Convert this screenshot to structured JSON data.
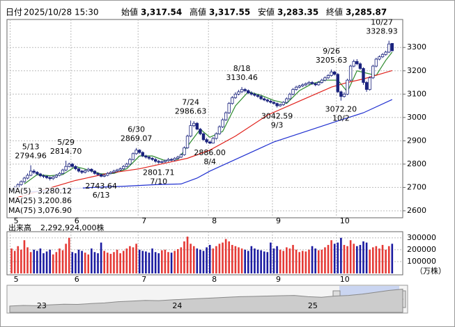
{
  "chart_data": {
    "type": "candlestick",
    "header": {
      "date_label": "日付",
      "date": "2025/10/28 15:30",
      "items": [
        {
          "label": "始値",
          "value": "3,317.54",
          "color": "#000000"
        },
        {
          "label": "高値",
          "value": "3,317.55",
          "color": "#e0201a"
        },
        {
          "label": "安値",
          "value": "3,283.35",
          "color": "#1e8a1e"
        },
        {
          "label": "終値",
          "value": "3,285.87",
          "color": "#000000"
        }
      ]
    },
    "xlim": [
      -1,
      121
    ],
    "xticks": [
      {
        "value": 0,
        "label": "5"
      },
      {
        "value": 19,
        "label": "6"
      },
      {
        "value": 40,
        "label": "7"
      },
      {
        "value": 62,
        "label": "8"
      },
      {
        "value": 82,
        "label": "9"
      },
      {
        "value": 102,
        "label": "10"
      }
    ],
    "ylim": [
      2570,
      3420
    ],
    "yticks": [
      2600,
      2700,
      2800,
      2900,
      3000,
      3100,
      3200,
      3300
    ],
    "grid": true,
    "up_color": "#ffffff",
    "down_color": "#1a237e",
    "open": [
      2685,
      2690,
      2700,
      2712,
      2725,
      2740,
      2752,
      2770,
      2765,
      2758,
      2750,
      2748,
      2742,
      2738,
      2745,
      2752,
      2760,
      2775,
      2790,
      2800,
      2790,
      2780,
      2770,
      2765,
      2772,
      2778,
      2770,
      2760,
      2755,
      2748,
      2752,
      2760,
      2765,
      2770,
      2775,
      2780,
      2790,
      2800,
      2820,
      2845,
      2860,
      2850,
      2835,
      2830,
      2825,
      2820,
      2812,
      2808,
      2810,
      2815,
      2820,
      2818,
      2825,
      2830,
      2840,
      2870,
      2920,
      2965,
      2975,
      2950,
      2930,
      2905,
      2895,
      2890,
      2910,
      2930,
      2960,
      2990,
      3020,
      3060,
      3085,
      3100,
      3110,
      3120,
      3115,
      3105,
      3100,
      3095,
      3090,
      3080,
      3075,
      3070,
      3065,
      3060,
      3050,
      3055,
      3065,
      3080,
      3100,
      3120,
      3130,
      3135,
      3140,
      3145,
      3150,
      3145,
      3140,
      3150,
      3160,
      3170,
      3180,
      3195,
      3185,
      3110,
      3090,
      3100,
      3160,
      3220,
      3240,
      3230,
      3210,
      3150,
      3120,
      3170,
      3220,
      3250,
      3260,
      3270,
      3280,
      3317.54
    ],
    "high": [
      2698,
      2706,
      2718,
      2730,
      2746,
      2760,
      2794.96,
      2778,
      2770,
      2762,
      2756,
      2752,
      2748,
      2750,
      2758,
      2766,
      2780,
      2814.7,
      2806,
      2805,
      2795,
      2784,
      2775,
      2778,
      2784,
      2782,
      2774,
      2765,
      2760,
      2758,
      2766,
      2770,
      2776,
      2780,
      2786,
      2796,
      2806,
      2826,
      2850,
      2869.07,
      2864,
      2855,
      2840,
      2836,
      2830,
      2826,
      2818,
      2816,
      2820,
      2826,
      2826,
      2830,
      2836,
      2846,
      2876,
      2926,
      2986.63,
      2984,
      2980,
      2955,
      2935,
      2912,
      2900,
      2916,
      2936,
      2966,
      2996,
      3026,
      3066,
      3092,
      3108,
      3118,
      3130.46,
      3126,
      3120,
      3112,
      3106,
      3100,
      3096,
      3086,
      3080,
      3076,
      3070,
      3064,
      3060,
      3070,
      3086,
      3106,
      3126,
      3136,
      3140,
      3146,
      3150,
      3156,
      3156,
      3150,
      3156,
      3166,
      3176,
      3186,
      3205.63,
      3200,
      3190,
      3115,
      3108,
      3166,
      3226,
      3248,
      3250,
      3236,
      3215,
      3156,
      3176,
      3226,
      3256,
      3266,
      3276,
      3286,
      3328.93,
      3317.55
    ],
    "low": [
      2680,
      2686,
      2696,
      2708,
      2720,
      2735,
      2748,
      2758,
      2752,
      2744,
      2740,
      2736,
      2730,
      2732,
      2740,
      2748,
      2756,
      2770,
      2786,
      2784,
      2774,
      2764,
      2758,
      2760,
      2766,
      2764,
      2755,
      2750,
      2743.64,
      2744,
      2748,
      2756,
      2760,
      2766,
      2770,
      2776,
      2786,
      2796,
      2816,
      2840,
      2844,
      2830,
      2824,
      2818,
      2814,
      2806,
      2801.71,
      2803,
      2805,
      2810,
      2812,
      2812,
      2820,
      2826,
      2836,
      2866,
      2915,
      2958,
      2945,
      2924,
      2900,
      2888,
      2886.0,
      2888,
      2905,
      2926,
      2955,
      2985,
      3015,
      3055,
      3080,
      3095,
      3105,
      3108,
      3100,
      3094,
      3090,
      3084,
      3075,
      3070,
      3064,
      3060,
      3055,
      3042.59,
      3046,
      3050,
      3060,
      3076,
      3095,
      3115,
      3125,
      3130,
      3134,
      3140,
      3140,
      3134,
      3136,
      3145,
      3155,
      3165,
      3175,
      3180,
      3105,
      3072.2,
      3085,
      3096,
      3155,
      3215,
      3224,
      3204,
      3140,
      3110,
      3115,
      3165,
      3215,
      3245,
      3255,
      3265,
      3276,
      3283.35
    ],
    "close": [
      2690,
      2700,
      2712,
      2725,
      2740,
      2752,
      2770,
      2765,
      2758,
      2750,
      2748,
      2742,
      2738,
      2745,
      2752,
      2760,
      2775,
      2790,
      2800,
      2790,
      2780,
      2770,
      2765,
      2772,
      2778,
      2770,
      2760,
      2755,
      2748,
      2752,
      2760,
      2765,
      2770,
      2775,
      2780,
      2790,
      2800,
      2820,
      2845,
      2860,
      2850,
      2835,
      2830,
      2825,
      2820,
      2812,
      2808,
      2810,
      2815,
      2820,
      2818,
      2825,
      2830,
      2840,
      2870,
      2920,
      2965,
      2975,
      2950,
      2930,
      2905,
      2895,
      2890,
      2910,
      2930,
      2960,
      2990,
      3020,
      3060,
      3085,
      3100,
      3110,
      3120,
      3115,
      3105,
      3100,
      3095,
      3090,
      3080,
      3075,
      3070,
      3065,
      3060,
      3050,
      3055,
      3065,
      3080,
      3100,
      3120,
      3130,
      3135,
      3140,
      3145,
      3150,
      3145,
      3140,
      3150,
      3160,
      3170,
      3180,
      3195,
      3185,
      3110,
      3090,
      3100,
      3160,
      3220,
      3240,
      3230,
      3210,
      3150,
      3120,
      3170,
      3220,
      3250,
      3260,
      3270,
      3280,
      3315,
      3285.87
    ],
    "ma": [
      {
        "name": "MA(5)",
        "last_label": "3,280.12",
        "color": "#2e8b2e",
        "x": [
          4,
          8,
          12,
          16,
          20,
          24,
          28,
          32,
          36,
          40,
          44,
          48,
          52,
          56,
          59,
          62,
          66,
          70,
          74,
          78,
          82,
          86,
          90,
          94,
          98,
          102,
          105,
          108,
          111,
          114,
          117,
          119
        ],
        "values": [
          2715,
          2755,
          2750,
          2755,
          2790,
          2775,
          2758,
          2760,
          2780,
          2835,
          2835,
          2815,
          2820,
          2895,
          2950,
          2915,
          2940,
          3050,
          3110,
          3095,
          3073,
          3060,
          3115,
          3145,
          3160,
          3160,
          3110,
          3200,
          3190,
          3180,
          3245,
          3280.12
        ]
      },
      {
        "name": "MA(25)",
        "last_label": "3,200.86",
        "color": "#e0201a",
        "x": [
          0,
          10,
          20,
          30,
          40,
          50,
          55,
          62,
          70,
          80,
          90,
          100,
          105,
          110,
          115,
          119
        ],
        "values": [
          2650,
          2690,
          2730,
          2760,
          2780,
          2810,
          2825,
          2860,
          2920,
          3010,
          3070,
          3130,
          3150,
          3165,
          3185,
          3200.86
        ]
      },
      {
        "name": "MA(75)",
        "last_label": "3,076.90",
        "color": "#1f2fd0",
        "x": [
          5,
          15,
          25,
          35,
          45,
          53,
          58,
          62,
          70,
          82,
          92,
          102,
          110,
          119
        ],
        "values": [
          2680,
          2690,
          2700,
          2705,
          2712,
          2715,
          2740,
          2770,
          2820,
          2895,
          2940,
          2985,
          3020,
          3076.9
        ]
      }
    ],
    "annotations": [
      {
        "date": "5/13",
        "x": 6,
        "value": 2794.96,
        "label": "2794.96",
        "position": "above"
      },
      {
        "date": "5/29",
        "x": 17,
        "value": 2814.7,
        "label": "2814.70",
        "position": "above"
      },
      {
        "date": "6/13",
        "x": 28,
        "value": 2743.64,
        "label": "2743.64",
        "position": "below"
      },
      {
        "date": "6/30",
        "x": 39,
        "value": 2869.07,
        "label": "2869.07",
        "position": "above"
      },
      {
        "date": "7/10",
        "x": 46,
        "value": 2801.71,
        "label": "2801.71",
        "position": "below"
      },
      {
        "date": "7/24",
        "x": 56,
        "value": 2986.63,
        "label": "2986.63",
        "position": "above"
      },
      {
        "date": "8/4",
        "x": 62,
        "value": 2886.0,
        "label": "2886.00",
        "position": "below"
      },
      {
        "date": "8/18",
        "x": 72,
        "value": 3130.46,
        "label": "3130.46",
        "position": "above"
      },
      {
        "date": "9/3",
        "x": 83,
        "value": 3042.59,
        "label": "3042.59",
        "position": "below"
      },
      {
        "date": "9/26",
        "x": 100,
        "value": 3205.63,
        "label": "3205.63",
        "position": "above"
      },
      {
        "date": "10/2",
        "x": 103,
        "value": 3072.2,
        "label": "3072.20",
        "position": "below"
      },
      {
        "date": "10/27",
        "x": 118,
        "value": 3328.93,
        "label": "3328.93",
        "position": "above"
      }
    ],
    "volume": {
      "title": "出来高",
      "total": "2,292,924,000株",
      "unit": "（万株）",
      "color": "#e53935",
      "down_color": "#1a1aa0",
      "ylim": [
        0,
        340000
      ],
      "yticks": [
        100000,
        200000,
        300000
      ],
      "values": [
        210000,
        190000,
        230000,
        200000,
        280000,
        220000,
        180000,
        200000,
        190000,
        210000,
        170000,
        185000,
        200000,
        160000,
        180000,
        210000,
        195000,
        250000,
        300000,
        180000,
        170000,
        200000,
        190000,
        175000,
        160000,
        210000,
        180000,
        170000,
        260000,
        190000,
        175000,
        165000,
        180000,
        200000,
        170000,
        190000,
        210000,
        230000,
        220000,
        250000,
        200000,
        190000,
        185000,
        175000,
        210000,
        180000,
        170000,
        195000,
        200000,
        180000,
        175000,
        190000,
        205000,
        220000,
        270000,
        310000,
        250000,
        230000,
        210000,
        200000,
        190000,
        220000,
        240000,
        210000,
        230000,
        250000,
        260000,
        290000,
        270000,
        240000,
        230000,
        220000,
        210000,
        200000,
        190000,
        230000,
        210000,
        200000,
        195000,
        185000,
        180000,
        260000,
        210000,
        230000,
        200000,
        190000,
        220000,
        210000,
        240000,
        200000,
        180000,
        190000,
        185000,
        200000,
        230000,
        210000,
        195000,
        200000,
        220000,
        240000,
        280000,
        250000,
        260000,
        300000,
        240000,
        230000,
        280000,
        250000,
        230000,
        240000,
        270000,
        260000,
        200000,
        220000,
        230000,
        210000,
        240000,
        200000,
        230000,
        250000
      ]
    },
    "navigator": {
      "ylim": [
        1500,
        3500
      ],
      "values": [
        1950,
        2000,
        1980,
        2050,
        2100,
        2080,
        2150,
        2200,
        2300,
        2350,
        2400,
        2380,
        2450,
        2500,
        2550,
        2600,
        2650,
        2700,
        2720,
        2750,
        2780,
        2800,
        2700,
        2650,
        2750,
        2800,
        2900,
        3050,
        3200,
        3300
      ],
      "labels": [
        {
          "x": 2,
          "label": "23"
        },
        {
          "x": 12,
          "label": "24"
        },
        {
          "x": 22,
          "label": "25"
        }
      ]
    }
  }
}
